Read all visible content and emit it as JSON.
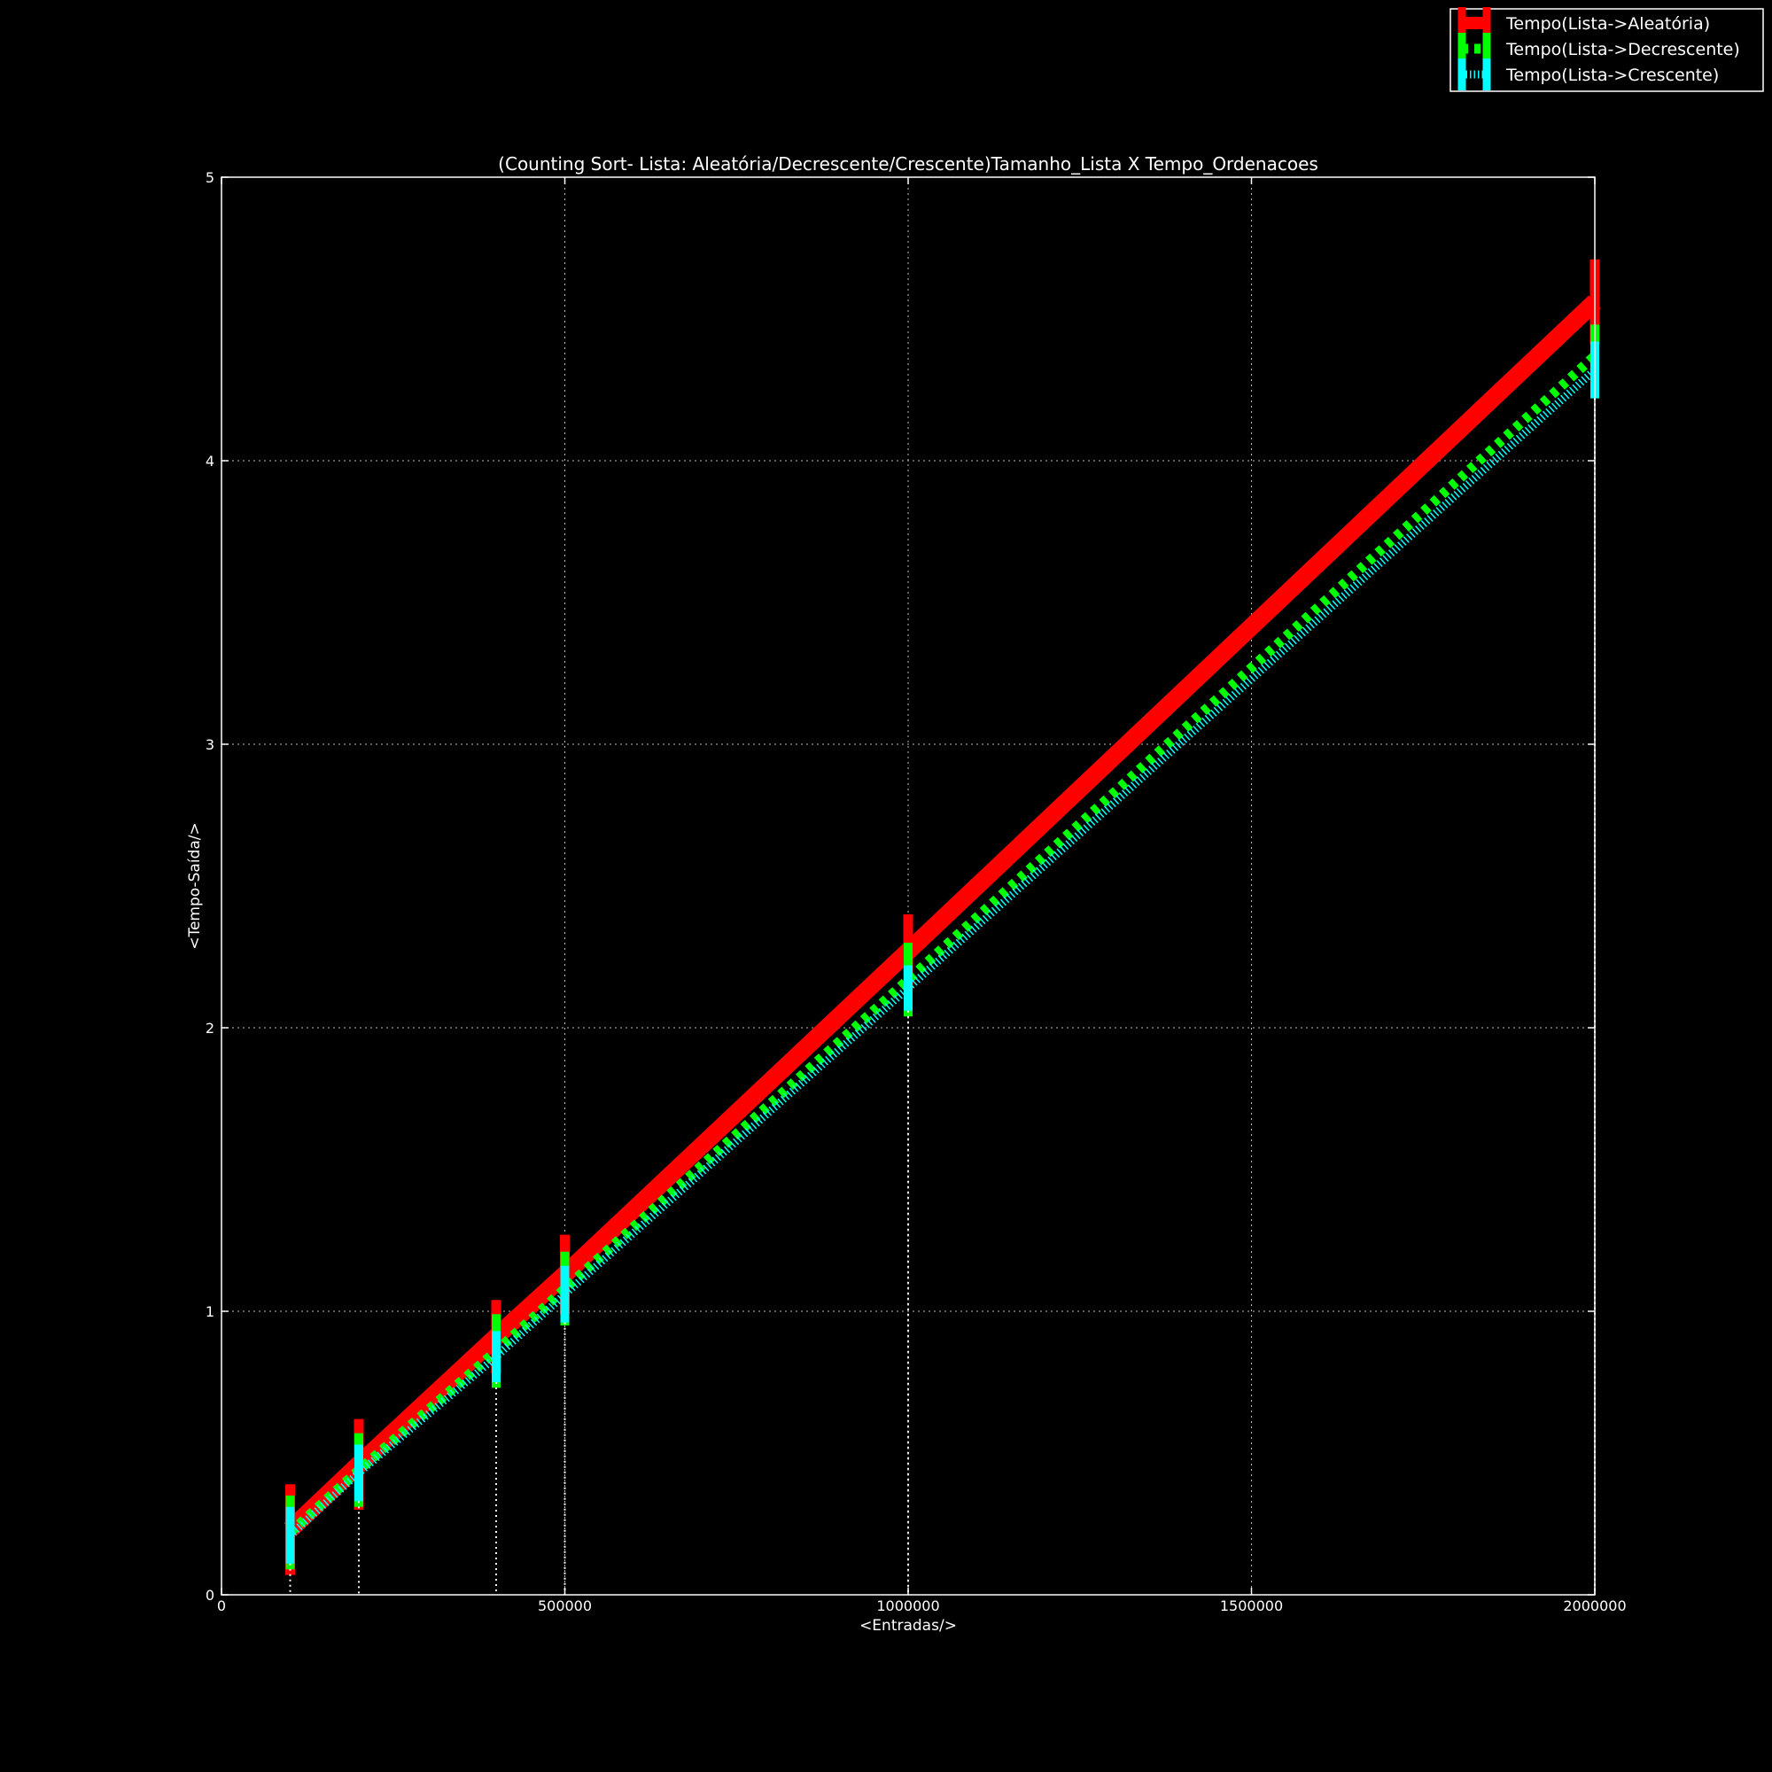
{
  "chart_data": {
    "type": "line",
    "title": "(Counting Sort- Lista: Aleatória/Decrescente/Crescente)Tamanho_Lista X Tempo_Ordenacoes",
    "xlabel": "<Entradas/>",
    "ylabel": "<Tempo-Saída/>",
    "xlim": [
      0,
      2000000
    ],
    "ylim": [
      0,
      5
    ],
    "xticks": [
      0,
      500000,
      1000000,
      1500000,
      2000000
    ],
    "yticks": [
      0,
      1,
      2,
      3,
      4,
      5
    ],
    "grid": true,
    "legend_position": "top-right",
    "x": [
      100000,
      200000,
      400000,
      500000,
      1000000,
      2000000
    ],
    "series": [
      {
        "name": "Tempo(Lista->Aleatória)",
        "color": "#ff0000",
        "style": "solid-thick",
        "values": [
          0.23,
          0.46,
          0.91,
          1.13,
          2.27,
          4.56
        ],
        "errors": [
          0.16,
          0.16,
          0.13,
          0.14,
          0.13,
          0.15
        ]
      },
      {
        "name": "Tempo(Lista->Decrescente)",
        "color": "#00ff00",
        "style": "dashed",
        "values": [
          0.22,
          0.44,
          0.86,
          1.08,
          2.17,
          4.37
        ],
        "errors": [
          0.13,
          0.13,
          0.13,
          0.13,
          0.13,
          0.11
        ]
      },
      {
        "name": "Tempo(Lista->Crescente)",
        "color": "#00ffff",
        "style": "dotted-ticks",
        "values": [
          0.21,
          0.43,
          0.84,
          1.06,
          2.14,
          4.32
        ],
        "errors": [
          0.1,
          0.1,
          0.09,
          0.1,
          0.08,
          0.1
        ]
      }
    ]
  }
}
